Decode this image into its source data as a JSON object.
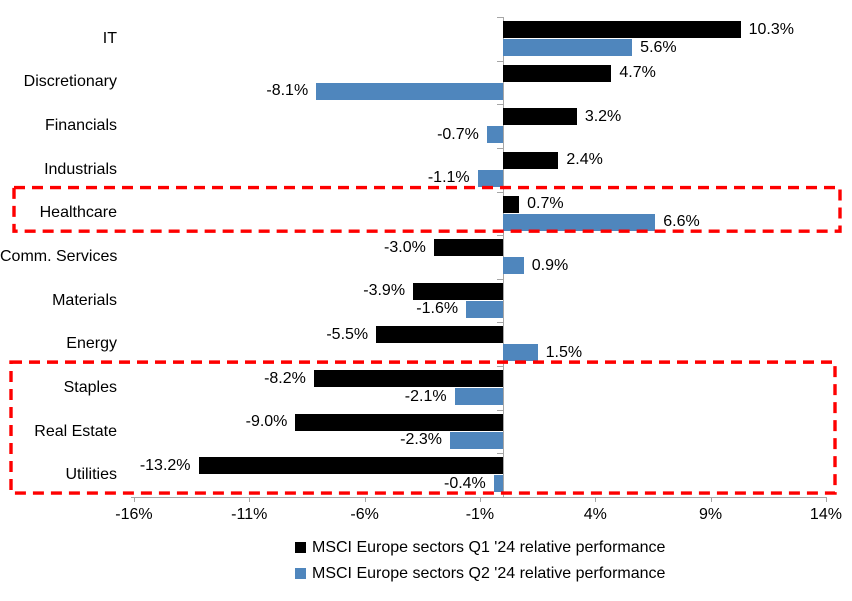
{
  "chart_data": {
    "type": "bar",
    "orientation": "horizontal",
    "title": "",
    "categories": [
      "IT",
      "Discretionary",
      "Financials",
      "Industrials",
      "Healthcare",
      "Comm. Services",
      "Materials",
      "Energy",
      "Staples",
      "Real Estate",
      "Utilities"
    ],
    "series": [
      {
        "name": "MSCI Europe sectors Q1 '24 relative performance",
        "color": "#000000",
        "values": [
          10.3,
          4.7,
          3.2,
          2.4,
          0.7,
          -3.0,
          -3.9,
          -5.5,
          -8.2,
          -9.0,
          -13.2
        ],
        "labels": [
          "10.3%",
          "4.7%",
          "3.2%",
          "2.4%",
          "0.7%",
          "-3.0%",
          "-3.9%",
          "-5.5%",
          "-8.2%",
          "-9.0%",
          "-13.2%"
        ]
      },
      {
        "name": "MSCI Europe sectors Q2 '24 relative performance",
        "color": "#4F86BD",
        "values": [
          5.6,
          -8.1,
          -0.7,
          -1.1,
          6.6,
          0.9,
          -1.6,
          1.5,
          -2.1,
          -2.3,
          -0.4
        ],
        "labels": [
          "5.6%",
          "-8.1%",
          "-0.7%",
          "-1.1%",
          "6.6%",
          "0.9%",
          "-1.6%",
          "1.5%",
          "-2.1%",
          "-2.3%",
          "-0.4%"
        ]
      }
    ],
    "x_axis": {
      "tick_labels": [
        "-16%",
        "-11%",
        "-6%",
        "-1%",
        "4%",
        "9%",
        "14%"
      ],
      "tick_values": [
        -16,
        -11,
        -6,
        -1,
        4,
        9,
        14
      ],
      "range": [
        -16,
        14
      ]
    },
    "axis_color": "#a6a6a6",
    "text_color": "#000000",
    "grid": false,
    "legend_position": "bottom",
    "highlight_boxes": [
      {
        "categories": [
          "Healthcare"
        ],
        "color": "#fe0000",
        "style": "dashed"
      },
      {
        "categories": [
          "Staples",
          "Real Estate",
          "Utilities"
        ],
        "color": "#fe0000",
        "style": "dashed"
      }
    ]
  }
}
